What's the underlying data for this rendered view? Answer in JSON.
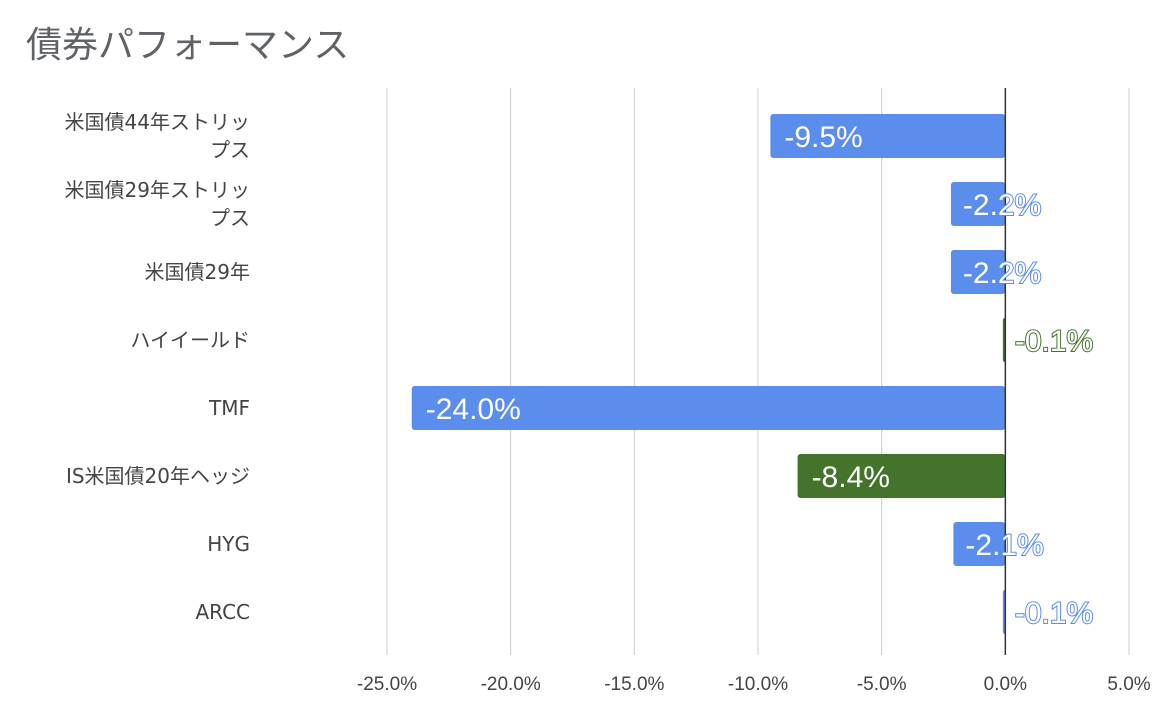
{
  "title": "債券パフォーマンス",
  "chart_data": {
    "type": "bar",
    "orientation": "horizontal",
    "title": "債券パフォーマンス",
    "categories": [
      [
        "米国債44年ストリッ",
        "プス"
      ],
      [
        "米国債29年ストリッ",
        "プス"
      ],
      [
        "米国債29年"
      ],
      [
        "ハイイールド"
      ],
      [
        "TMF"
      ],
      [
        "IS米国債20年ヘッジ"
      ],
      [
        "HYG"
      ],
      [
        "ARCC"
      ]
    ],
    "values": [
      -9.5,
      -2.2,
      -2.2,
      -0.1,
      -24.0,
      -8.4,
      -2.1,
      -0.1
    ],
    "value_labels": [
      "-9.5%",
      "-2.2%",
      "-2.2%",
      "-0.1%",
      "-24.0%",
      "-8.4%",
      "-2.1%",
      "-0.1%"
    ],
    "bar_colors": [
      "#5b8ded",
      "#5b8ded",
      "#5b8ded",
      "#44742c",
      "#5b8ded",
      "#44742c",
      "#5b8ded",
      "#5b8ded"
    ],
    "xlim": [
      -25,
      5
    ],
    "xticks": [
      -25,
      -20,
      -15,
      -10,
      -5,
      0,
      5
    ],
    "xtick_labels": [
      "-25.0%",
      "-20.0%",
      "-15.0%",
      "-10.0%",
      "-5.0%",
      "0.0%",
      "5.0%"
    ],
    "grid": true,
    "legend": "none"
  }
}
